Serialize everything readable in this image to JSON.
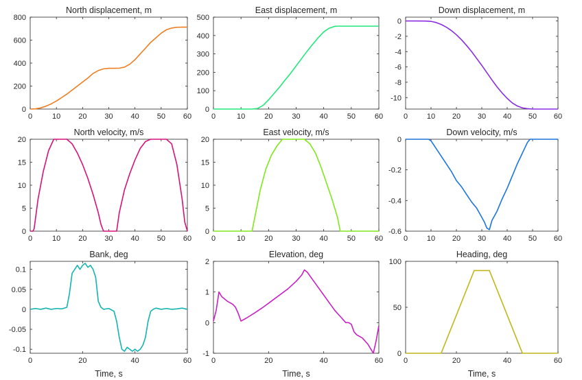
{
  "figure": {
    "background": "#ffffff",
    "axis_color": "#262626"
  },
  "chart_data": [
    {
      "type": "line",
      "title": "North displacement, m",
      "xlabel": "",
      "ylabel": "",
      "xlim": [
        0,
        60
      ],
      "ylim": [
        0,
        800
      ],
      "xticks": [
        0,
        10,
        20,
        30,
        40,
        50,
        60
      ],
      "yticks": [
        0,
        200,
        400,
        600,
        800
      ],
      "color": "#ed7d1f",
      "series": [
        {
          "name": "North displacement",
          "x": [
            0,
            2,
            4,
            6,
            8,
            10,
            12,
            14,
            16,
            18,
            20,
            22,
            24,
            26,
            28,
            30,
            32,
            34,
            36,
            38,
            40,
            42,
            44,
            46,
            48,
            50,
            52,
            54,
            56,
            58,
            60
          ],
          "y": [
            0,
            2,
            10,
            25,
            45,
            70,
            100,
            130,
            165,
            200,
            235,
            270,
            310,
            335,
            350,
            355,
            355,
            356,
            365,
            390,
            430,
            480,
            530,
            580,
            620,
            660,
            690,
            705,
            712,
            713,
            713
          ]
        }
      ]
    },
    {
      "type": "line",
      "title": "East displacement, m",
      "xlabel": "",
      "ylabel": "",
      "xlim": [
        0,
        60
      ],
      "ylim": [
        0,
        500
      ],
      "xticks": [
        0,
        10,
        20,
        30,
        40,
        50,
        60
      ],
      "yticks": [
        0,
        100,
        200,
        300,
        400,
        500
      ],
      "color": "#22e87a",
      "series": [
        {
          "name": "East displacement",
          "x": [
            0,
            4,
            8,
            12,
            14,
            16,
            18,
            20,
            22,
            24,
            26,
            28,
            30,
            32,
            34,
            36,
            38,
            40,
            42,
            44,
            45,
            46,
            50,
            54,
            58,
            60
          ],
          "y": [
            0,
            0,
            0,
            0,
            0,
            3,
            20,
            50,
            85,
            120,
            158,
            195,
            235,
            275,
            315,
            352,
            388,
            420,
            440,
            450,
            451,
            451,
            451,
            451,
            451,
            451
          ]
        }
      ]
    },
    {
      "type": "line",
      "title": "Down displacement, m",
      "xlabel": "",
      "ylabel": "",
      "xlim": [
        0,
        60
      ],
      "ylim": [
        -11.5,
        0.5
      ],
      "xticks": [
        0,
        10,
        20,
        30,
        40,
        50,
        60
      ],
      "yticks": [
        -10,
        -8,
        -6,
        -4,
        -2,
        0
      ],
      "color": "#8a2be2",
      "series": [
        {
          "name": "Down displacement",
          "x": [
            0,
            4,
            8,
            10,
            12,
            14,
            16,
            18,
            20,
            22,
            24,
            26,
            28,
            30,
            32,
            34,
            36,
            38,
            40,
            42,
            44,
            46,
            48,
            50,
            52,
            56,
            60
          ],
          "y": [
            0,
            0,
            -0.01,
            -0.05,
            -0.2,
            -0.45,
            -0.8,
            -1.25,
            -1.8,
            -2.45,
            -3.2,
            -4.0,
            -4.9,
            -5.8,
            -6.75,
            -7.7,
            -8.6,
            -9.4,
            -10.1,
            -10.7,
            -11.1,
            -11.35,
            -11.45,
            -11.5,
            -11.5,
            -11.5,
            -11.5
          ]
        }
      ]
    },
    {
      "type": "line",
      "title": "North velocity, m/s",
      "xlabel": "",
      "ylabel": "",
      "xlim": [
        0,
        60
      ],
      "ylim": [
        0,
        20
      ],
      "xticks": [
        0,
        10,
        20,
        30,
        40,
        50,
        60
      ],
      "yticks": [
        0,
        5,
        10,
        15,
        20
      ],
      "color": "#d6117a",
      "series": [
        {
          "name": "North velocity",
          "x": [
            0,
            1,
            1.5,
            3,
            5,
            7,
            9,
            10,
            12,
            14,
            16,
            18,
            20,
            22,
            24,
            26,
            27,
            28,
            30,
            32,
            33,
            34,
            36,
            38,
            40,
            42,
            44,
            46,
            48,
            50,
            52,
            54,
            56,
            58,
            59,
            60
          ],
          "y": [
            0,
            0,
            0.5,
            7,
            13,
            17.5,
            20,
            20,
            20,
            20,
            19,
            17,
            14.5,
            11.5,
            8,
            4,
            1.5,
            0,
            0,
            0,
            0,
            4,
            9,
            12.5,
            15.5,
            18,
            19.5,
            20,
            20,
            20,
            20,
            19,
            14.5,
            7,
            2,
            0
          ]
        }
      ]
    },
    {
      "type": "line",
      "title": "East velocity, m/s",
      "xlabel": "",
      "ylabel": "",
      "xlim": [
        0,
        60
      ],
      "ylim": [
        0,
        20
      ],
      "xticks": [
        0,
        10,
        20,
        30,
        40,
        50,
        60
      ],
      "yticks": [
        0,
        5,
        10,
        15,
        20
      ],
      "color": "#7ee81a",
      "series": [
        {
          "name": "East velocity",
          "x": [
            0,
            10,
            14,
            15,
            17,
            19,
            21,
            23,
            25,
            27,
            29,
            31,
            33,
            35,
            37,
            39,
            41,
            43,
            45,
            46,
            50,
            55,
            60
          ],
          "y": [
            0,
            0,
            0,
            3,
            9,
            13.5,
            16.5,
            18.5,
            20,
            20,
            20,
            20,
            20,
            19,
            17,
            14,
            10.5,
            7,
            3,
            0,
            0,
            0,
            0
          ]
        }
      ]
    },
    {
      "type": "line",
      "title": "Down velocity, m/s",
      "xlabel": "",
      "ylabel": "",
      "xlim": [
        0,
        60
      ],
      "ylim": [
        -0.6,
        0
      ],
      "xticks": [
        0,
        10,
        20,
        30,
        40,
        50,
        60
      ],
      "yticks": [
        -0.6,
        -0.4,
        -0.2,
        0
      ],
      "color": "#1a74e0",
      "series": [
        {
          "name": "Down velocity",
          "x": [
            0,
            5,
            9,
            10,
            12,
            14,
            16,
            18,
            20,
            22,
            24,
            26,
            28,
            30,
            31,
            32,
            33,
            34,
            36,
            38,
            40,
            42,
            44,
            46,
            48,
            49,
            52,
            56,
            60
          ],
          "y": [
            0,
            0,
            0,
            -0.01,
            -0.06,
            -0.11,
            -0.16,
            -0.21,
            -0.27,
            -0.31,
            -0.36,
            -0.41,
            -0.45,
            -0.51,
            -0.54,
            -0.58,
            -0.59,
            -0.53,
            -0.47,
            -0.39,
            -0.32,
            -0.24,
            -0.16,
            -0.09,
            -0.02,
            0,
            0,
            0,
            0
          ]
        }
      ]
    },
    {
      "type": "line",
      "title": "Bank, deg",
      "xlabel": "Time, s",
      "ylabel": "",
      "xlim": [
        0,
        60
      ],
      "ylim": [
        -0.11,
        0.12
      ],
      "xticks": [
        0,
        20,
        40,
        60
      ],
      "yticks": [
        -0.1,
        -0.05,
        0,
        0.05,
        0.1
      ],
      "color": "#13b3b0",
      "series": [
        {
          "name": "Bank",
          "x": [
            0,
            2,
            4,
            6,
            8,
            10,
            12,
            14,
            15,
            16,
            17,
            18,
            19,
            20,
            21,
            22,
            23,
            24,
            25,
            26,
            27,
            28,
            30,
            32,
            33,
            34,
            35,
            36,
            37,
            38,
            39,
            40,
            41,
            42,
            43,
            44,
            45,
            46,
            47,
            48,
            50,
            52,
            54,
            56,
            58,
            60
          ],
          "y": [
            0,
            0.002,
            0,
            0.003,
            0,
            0.002,
            0.001,
            0.005,
            0.04,
            0.09,
            0.1,
            0.11,
            0.1,
            0.11,
            0.115,
            0.105,
            0.11,
            0.1,
            0.08,
            0.02,
            0.005,
            0,
            0.002,
            -0.005,
            -0.03,
            -0.07,
            -0.1,
            -0.105,
            -0.095,
            -0.1,
            -0.105,
            -0.1,
            -0.105,
            -0.1,
            -0.09,
            -0.07,
            -0.03,
            -0.005,
            0,
            0.003,
            0,
            0.002,
            0,
            0.001,
            0.003,
            0
          ]
        }
      ]
    },
    {
      "type": "line",
      "title": "Elevation, deg",
      "xlabel": "Time, s",
      "ylabel": "",
      "xlim": [
        0,
        60
      ],
      "ylim": [
        -1,
        2
      ],
      "xticks": [
        0,
        20,
        40,
        60
      ],
      "yticks": [
        -1,
        0,
        1,
        2
      ],
      "color": "#c71fc4",
      "series": [
        {
          "name": "Elevation",
          "x": [
            0,
            1,
            2,
            3,
            5,
            7,
            8,
            9,
            10,
            12,
            15,
            18,
            21,
            24,
            27,
            30,
            32,
            33,
            34,
            36,
            38,
            40,
            42,
            44,
            46,
            48,
            49,
            50,
            51,
            52,
            54,
            56,
            57,
            58,
            59,
            60
          ],
          "y": [
            0.05,
            0.4,
            1.0,
            0.85,
            0.7,
            0.6,
            0.5,
            0.3,
            0.05,
            0.15,
            0.32,
            0.5,
            0.7,
            0.9,
            1.1,
            1.35,
            1.55,
            1.72,
            1.65,
            1.4,
            1.15,
            0.9,
            0.65,
            0.4,
            0.2,
            0.0,
            0.0,
            -0.05,
            -0.3,
            -0.4,
            -0.5,
            -0.7,
            -0.85,
            -1.0,
            -0.6,
            -0.1
          ]
        }
      ]
    },
    {
      "type": "line",
      "title": "Heading, deg",
      "xlabel": "Time, s",
      "ylabel": "",
      "xlim": [
        0,
        60
      ],
      "ylim": [
        0,
        100
      ],
      "xticks": [
        0,
        20,
        40,
        60
      ],
      "yticks": [
        0,
        50,
        100
      ],
      "color": "#c2b51a",
      "series": [
        {
          "name": "Heading",
          "x": [
            0,
            10,
            14,
            27,
            33,
            46,
            50,
            55,
            60
          ],
          "y": [
            0,
            0,
            0,
            90,
            90,
            0,
            0,
            0,
            0
          ]
        }
      ]
    }
  ]
}
